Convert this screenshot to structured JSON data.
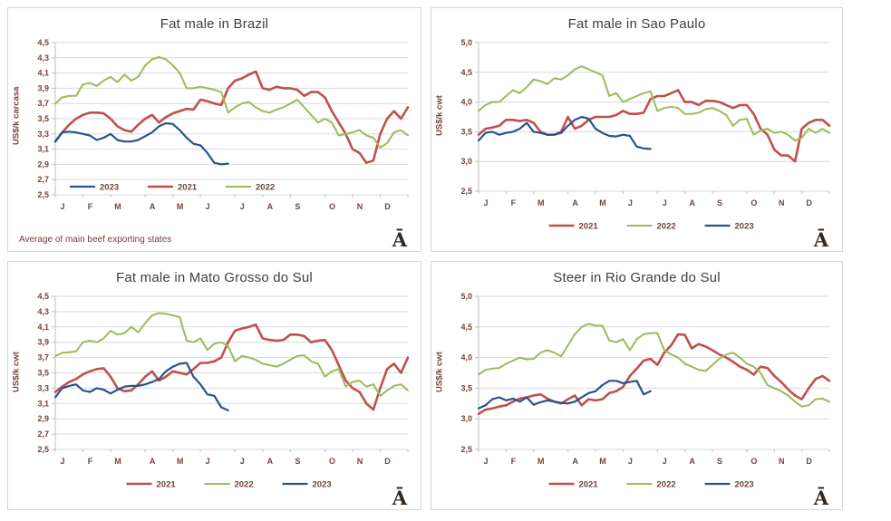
{
  "branding": {
    "mark": "Ā"
  },
  "colors": {
    "red": "#c0504d",
    "green": "#9bbb59",
    "blue": "#27548b",
    "grid": "#d9d9d9",
    "axis": "#bfbfbf",
    "tick_text": "#6f4539",
    "title_text": "#3f3f3f"
  },
  "chart_data": [
    {
      "type": "line",
      "title": "Fat male in Brazil",
      "ylabel": "US$/k carcasa",
      "note": "Average  of main beef exporting states",
      "x_tick_labels": [
        "J",
        "F",
        "M",
        "A",
        "M",
        "J",
        "J",
        "A",
        "S",
        "O",
        "N",
        "D"
      ],
      "ylim": [
        2.5,
        4.5
      ],
      "ytick_step": 0.2,
      "decimal_style": "comma",
      "grid": true,
      "legend_position": "inside-bottom-left",
      "legend_order": [
        "2023",
        "2021",
        "2022"
      ],
      "series": [
        {
          "name": "2021",
          "color_key": "red",
          "values": [
            3.2,
            3.32,
            3.42,
            3.5,
            3.55,
            3.58,
            3.58,
            3.57,
            3.5,
            3.4,
            3.35,
            3.33,
            3.42,
            3.5,
            3.55,
            3.45,
            3.52,
            3.57,
            3.6,
            3.63,
            3.62,
            3.75,
            3.73,
            3.7,
            3.68,
            3.9,
            4.0,
            4.03,
            4.08,
            4.12,
            3.9,
            3.88,
            3.92,
            3.9,
            3.9,
            3.88,
            3.8,
            3.85,
            3.85,
            3.78,
            3.6,
            3.45,
            3.3,
            3.1,
            3.05,
            2.92,
            2.95,
            3.3,
            3.5,
            3.6,
            3.5,
            3.65
          ]
        },
        {
          "name": "2022",
          "color_key": "green",
          "values": [
            3.7,
            3.78,
            3.8,
            3.8,
            3.95,
            3.97,
            3.93,
            4.0,
            4.05,
            3.98,
            4.08,
            4.0,
            4.05,
            4.2,
            4.28,
            4.31,
            4.28,
            4.2,
            4.1,
            3.9,
            3.9,
            3.92,
            3.9,
            3.88,
            3.85,
            3.58,
            3.65,
            3.7,
            3.72,
            3.65,
            3.6,
            3.58,
            3.62,
            3.65,
            3.7,
            3.75,
            3.65,
            3.55,
            3.45,
            3.5,
            3.45,
            3.28,
            3.3,
            3.32,
            3.35,
            3.28,
            3.25,
            3.12,
            3.18,
            3.32,
            3.35,
            3.28
          ]
        },
        {
          "name": "2023",
          "color_key": "blue",
          "values": [
            3.2,
            3.32,
            3.33,
            3.32,
            3.3,
            3.28,
            3.22,
            3.25,
            3.3,
            3.22,
            3.2,
            3.2,
            3.22,
            3.27,
            3.32,
            3.4,
            3.44,
            3.43,
            3.35,
            3.25,
            3.17,
            3.15,
            3.05,
            2.92,
            2.9,
            2.91
          ]
        }
      ]
    },
    {
      "type": "line",
      "title": "Fat male in Sao Paulo",
      "ylabel": "US$/k cwt",
      "x_tick_labels": [
        "J",
        "F",
        "M",
        "A",
        "M",
        "J",
        "J",
        "A",
        "S",
        "O",
        "N",
        "D"
      ],
      "ylim": [
        2.5,
        5.0
      ],
      "ytick_step": 0.5,
      "decimal_style": "comma",
      "grid": true,
      "legend_position": "bottom",
      "legend_order": [
        "2021",
        "2022",
        "2023"
      ],
      "series": [
        {
          "name": "2021",
          "color_key": "red",
          "values": [
            3.45,
            3.55,
            3.57,
            3.6,
            3.7,
            3.7,
            3.68,
            3.7,
            3.65,
            3.5,
            3.45,
            3.45,
            3.5,
            3.75,
            3.55,
            3.6,
            3.7,
            3.75,
            3.75,
            3.75,
            3.78,
            3.85,
            3.8,
            3.8,
            3.82,
            4.05,
            4.1,
            4.1,
            4.15,
            4.2,
            4.0,
            4.0,
            3.95,
            4.02,
            4.02,
            4.0,
            3.95,
            3.9,
            3.95,
            3.95,
            3.8,
            3.55,
            3.45,
            3.2,
            3.1,
            3.1,
            3.0,
            3.55,
            3.65,
            3.7,
            3.7,
            3.6
          ]
        },
        {
          "name": "2022",
          "color_key": "green",
          "values": [
            3.85,
            3.95,
            4.0,
            4.0,
            4.1,
            4.2,
            4.15,
            4.25,
            4.38,
            4.35,
            4.3,
            4.4,
            4.38,
            4.45,
            4.55,
            4.6,
            4.55,
            4.5,
            4.45,
            4.1,
            4.15,
            4.0,
            4.05,
            4.1,
            4.15,
            4.18,
            3.85,
            3.9,
            3.92,
            3.9,
            3.8,
            3.8,
            3.82,
            3.88,
            3.9,
            3.85,
            3.78,
            3.6,
            3.7,
            3.72,
            3.45,
            3.52,
            3.55,
            3.48,
            3.5,
            3.45,
            3.35,
            3.4,
            3.55,
            3.48,
            3.55,
            3.48
          ]
        },
        {
          "name": "2023",
          "color_key": "blue",
          "values": [
            3.35,
            3.48,
            3.5,
            3.45,
            3.48,
            3.5,
            3.55,
            3.65,
            3.5,
            3.48,
            3.45,
            3.45,
            3.48,
            3.6,
            3.7,
            3.75,
            3.72,
            3.55,
            3.48,
            3.43,
            3.42,
            3.45,
            3.43,
            3.25,
            3.22,
            3.21
          ]
        }
      ]
    },
    {
      "type": "line",
      "title": "Fat male in Mato Grosso do Sul",
      "ylabel": "US$/k cwt",
      "x_tick_labels": [
        "J",
        "F",
        "M",
        "A",
        "M",
        "J",
        "J",
        "A",
        "S",
        "O",
        "N",
        "D"
      ],
      "ylim": [
        2.5,
        4.5
      ],
      "ytick_step": 0.2,
      "decimal_style": "comma",
      "grid": true,
      "legend_position": "bottom",
      "legend_order": [
        "2021",
        "2022",
        "2023"
      ],
      "series": [
        {
          "name": "2021",
          "color_key": "red",
          "values": [
            3.25,
            3.32,
            3.38,
            3.42,
            3.48,
            3.52,
            3.55,
            3.56,
            3.45,
            3.3,
            3.26,
            3.27,
            3.35,
            3.45,
            3.52,
            3.4,
            3.45,
            3.52,
            3.5,
            3.48,
            3.55,
            3.63,
            3.63,
            3.65,
            3.7,
            3.9,
            4.05,
            4.08,
            4.1,
            4.13,
            3.95,
            3.93,
            3.92,
            3.93,
            4.0,
            4.0,
            3.98,
            3.9,
            3.92,
            3.93,
            3.8,
            3.6,
            3.4,
            3.3,
            3.25,
            3.1,
            3.02,
            3.3,
            3.55,
            3.62,
            3.5,
            3.7
          ]
        },
        {
          "name": "2022",
          "color_key": "green",
          "values": [
            3.72,
            3.76,
            3.77,
            3.78,
            3.9,
            3.92,
            3.9,
            3.95,
            4.05,
            4.0,
            4.02,
            4.1,
            4.03,
            4.15,
            4.25,
            4.28,
            4.27,
            4.25,
            4.23,
            3.92,
            3.9,
            3.95,
            3.8,
            3.88,
            3.9,
            3.85,
            3.65,
            3.72,
            3.7,
            3.67,
            3.62,
            3.6,
            3.58,
            3.62,
            3.67,
            3.72,
            3.73,
            3.65,
            3.62,
            3.45,
            3.52,
            3.55,
            3.32,
            3.38,
            3.4,
            3.32,
            3.35,
            3.2,
            3.27,
            3.33,
            3.35,
            3.27
          ]
        },
        {
          "name": "2023",
          "color_key": "blue",
          "values": [
            3.18,
            3.3,
            3.33,
            3.35,
            3.27,
            3.25,
            3.3,
            3.28,
            3.23,
            3.28,
            3.32,
            3.33,
            3.33,
            3.35,
            3.38,
            3.42,
            3.52,
            3.58,
            3.62,
            3.63,
            3.45,
            3.35,
            3.22,
            3.2,
            3.05,
            3.01
          ]
        }
      ]
    },
    {
      "type": "line",
      "title": "Steer  in Rio Grande do Sul",
      "ylabel": "US$/k cwt",
      "x_tick_labels": [
        "J",
        "F",
        "M",
        "A",
        "M",
        "J",
        "J",
        "A",
        "S",
        "O",
        "N",
        "D"
      ],
      "ylim": [
        2.5,
        5.0
      ],
      "ytick_step": 0.5,
      "decimal_style": "comma",
      "grid": true,
      "legend_position": "bottom",
      "legend_order": [
        "2021",
        "2022",
        "2023"
      ],
      "series": [
        {
          "name": "2021",
          "color_key": "red",
          "values": [
            3.08,
            3.15,
            3.17,
            3.2,
            3.22,
            3.28,
            3.33,
            3.35,
            3.38,
            3.4,
            3.33,
            3.28,
            3.25,
            3.32,
            3.38,
            3.22,
            3.32,
            3.3,
            3.32,
            3.42,
            3.45,
            3.52,
            3.7,
            3.82,
            3.95,
            3.98,
            3.88,
            4.08,
            4.2,
            4.38,
            4.37,
            4.15,
            4.22,
            4.18,
            4.12,
            4.05,
            4.0,
            3.93,
            3.85,
            3.8,
            3.72,
            3.85,
            3.83,
            3.7,
            3.6,
            3.48,
            3.38,
            3.32,
            3.5,
            3.65,
            3.7,
            3.62
          ]
        },
        {
          "name": "2022",
          "color_key": "green",
          "values": [
            3.72,
            3.8,
            3.82,
            3.83,
            3.9,
            3.95,
            4.0,
            3.97,
            3.98,
            4.08,
            4.12,
            4.08,
            4.02,
            4.2,
            4.38,
            4.5,
            4.55,
            4.52,
            4.52,
            4.28,
            4.25,
            4.3,
            4.12,
            4.3,
            4.38,
            4.4,
            4.4,
            4.12,
            4.05,
            4.0,
            3.9,
            3.85,
            3.8,
            3.78,
            3.88,
            3.98,
            4.05,
            4.08,
            4.0,
            3.9,
            3.85,
            3.75,
            3.55,
            3.5,
            3.45,
            3.38,
            3.28,
            3.2,
            3.22,
            3.32,
            3.33,
            3.28
          ]
        },
        {
          "name": "2023",
          "color_key": "blue",
          "values": [
            3.17,
            3.22,
            3.32,
            3.35,
            3.3,
            3.33,
            3.28,
            3.35,
            3.23,
            3.27,
            3.3,
            3.28,
            3.26,
            3.25,
            3.28,
            3.35,
            3.42,
            3.45,
            3.55,
            3.62,
            3.62,
            3.58,
            3.6,
            3.62,
            3.4,
            3.45
          ]
        }
      ]
    }
  ]
}
